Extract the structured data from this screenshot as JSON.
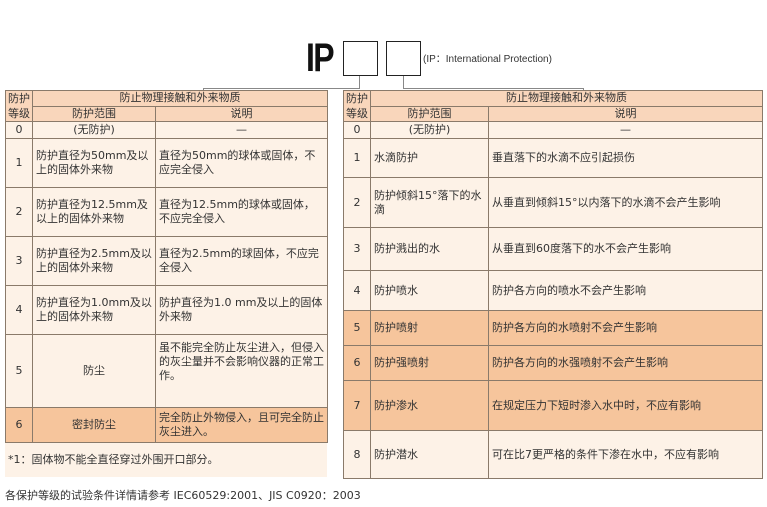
{
  "header": {
    "ip_label": "IP",
    "note": "(IP：International Protection)"
  },
  "left_table": {
    "col_grade": "防护等级",
    "col_group": "防止物理接触和外来物质",
    "col_range": "防护范围",
    "col_desc": "说明",
    "rows": [
      {
        "grade": "0",
        "range": "(无防护)",
        "desc": "—"
      },
      {
        "grade": "1",
        "range": "防护直径为50mm及以上的固体外来物",
        "desc": "直径为50mm的球体或固体，不应完全侵入"
      },
      {
        "grade": "2",
        "range": "防护直径为12.5mm及以上的固体外来物",
        "desc": "直径为12.5mm的球体或固体，不应完全侵入"
      },
      {
        "grade": "3",
        "range": "防护直径为2.5mm及以上的固体外来物",
        "desc": "直径为2.5mm的球固体，不应完全侵入"
      },
      {
        "grade": "4",
        "range": "防护直径为1.0mm及以上的固体外来物",
        "desc": "防护直径为1.0 mm及以上的固体外来物"
      },
      {
        "grade": "5",
        "range": "防尘",
        "desc": "虽不能完全防止灰尘进入，但侵入的灰尘量并不会影响仪器的正常工作。"
      },
      {
        "grade": "6",
        "range": "密封防尘",
        "desc": "完全防止外物侵入，且可完全防止灰尘进入。"
      }
    ],
    "footnote": "*1：固体物不能全直径穿过外围开口部分。"
  },
  "right_table": {
    "col_grade": "防护等级",
    "col_group": "防止物理接触和外来物质",
    "col_range": "防护范围",
    "col_desc": "说明",
    "rows": [
      {
        "grade": "0",
        "range": "(无防护)",
        "desc": "—"
      },
      {
        "grade": "1",
        "range": "水滴防护",
        "desc": "垂直落下的水滴不应引起损伤"
      },
      {
        "grade": "2",
        "range": "防护倾斜15°落下的水滴",
        "desc": "从垂直到倾斜15°以内落下的水滴不会产生影响"
      },
      {
        "grade": "3",
        "range": "防护溅出的水",
        "desc": "从垂直到60度落下的水不会产生影响"
      },
      {
        "grade": "4",
        "range": "防护喷水",
        "desc": "防护各方向的喷水不会产生影响"
      },
      {
        "grade": "5",
        "range": "防护喷射",
        "desc": "防护各方向的水喷射不会产生影响"
      },
      {
        "grade": "6",
        "range": "防护强喷射",
        "desc": "防护各方向的水强喷射不会产生影响"
      },
      {
        "grade": "7",
        "range": "防护渗水",
        "desc": "在规定压力下短时渗入水中时，不应有影响"
      },
      {
        "grade": "8",
        "range": "防护潜水",
        "desc": "可在比7更严格的条件下渗在水中，不应有影响"
      }
    ]
  },
  "bottom_note": "各保护等级的试验条件详情请参考 IEC60529:2001、JIS C0920：2003",
  "colors": {
    "header": "#f9d6bb",
    "row": "#fdf2e7",
    "highlight": "#f6c59c"
  }
}
